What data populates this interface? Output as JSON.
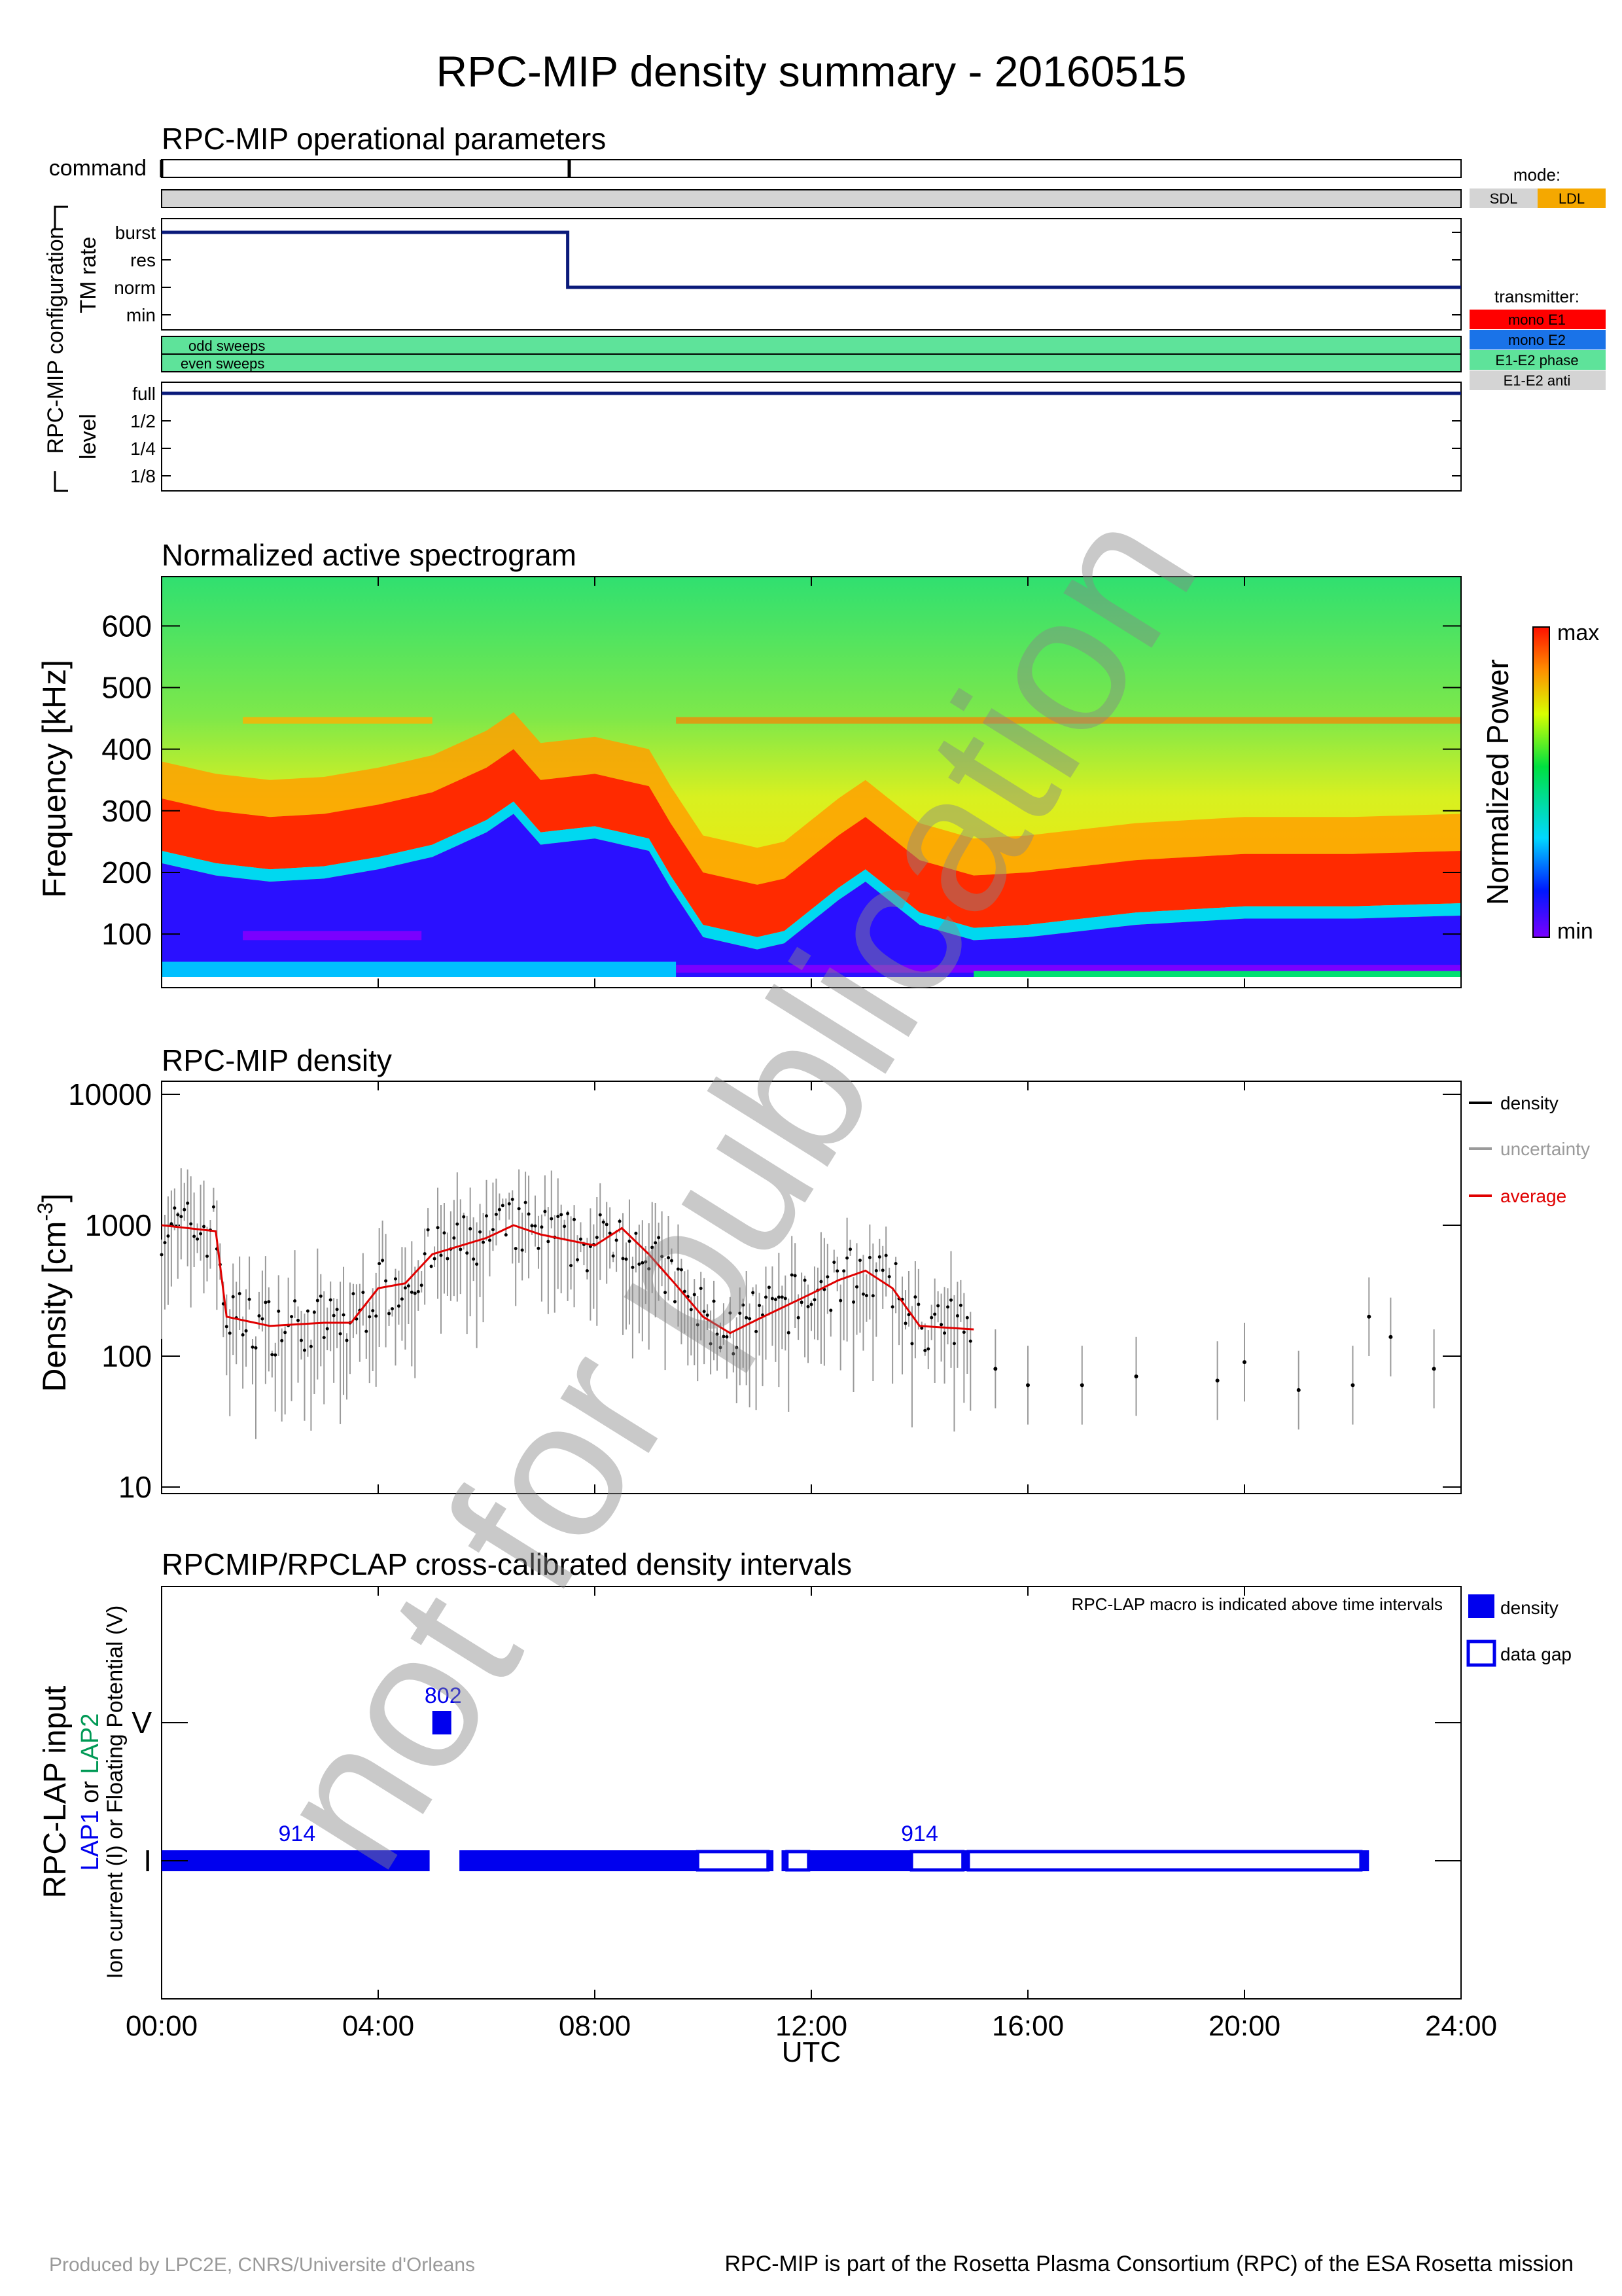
{
  "title": "RPC-MIP density summary - 20160515",
  "watermark": "not for publication",
  "footer": {
    "left": "Produced by LPC2E, CNRS/Universite d'Orleans",
    "right": "RPC-MIP is part of the Rosetta Plasma Consortium (RPC) of the ESA Rosetta mission"
  },
  "colors": {
    "navy": "#0a1a7a",
    "sdl": "#d4d4d4",
    "ldl": "#f5a800",
    "mono_e1": "#ff0000",
    "mono_e2": "#1a73e8",
    "e1e2_phase": "#5ee39a",
    "e1e2_anti": "#d4d4d4",
    "lap_blue": "#0000ee",
    "lap2_green": "#009955",
    "average_red": "#e00000",
    "uncertainty_grey": "#9a9a9a"
  },
  "time_axis": {
    "ticks": [
      "00:00",
      "04:00",
      "08:00",
      "12:00",
      "16:00",
      "20:00",
      "24:00"
    ],
    "label": "UTC"
  },
  "panel_params": {
    "title": "RPC-MIP operational parameters",
    "command_label": "command",
    "group_label": "RPC-MIP configuration",
    "tm_rate_label": "TM rate",
    "tm_levels": [
      "burst",
      "res",
      "norm",
      "min"
    ],
    "level_label": "level",
    "level_levels": [
      "full",
      "1/2",
      "1/4",
      "1/8"
    ],
    "sweep_labels": [
      "odd sweeps",
      "even sweeps"
    ],
    "mode_legend": {
      "title": "mode:",
      "items": [
        "SDL",
        "LDL"
      ]
    },
    "transmitter_legend": {
      "title": "transmitter:",
      "items": [
        "mono E1",
        "mono E2",
        "E1-E2 phase",
        "E1-E2 anti"
      ]
    }
  },
  "panel_spectrogram": {
    "title": "Normalized active spectrogram",
    "ylabel": "Frequency [kHz]",
    "yticks": [
      "100",
      "200",
      "300",
      "400",
      "500",
      "600"
    ],
    "colorbar_label": "Normalized Power",
    "colorbar_max": "max",
    "colorbar_min": "min"
  },
  "panel_density": {
    "title": "RPC-MIP density",
    "ylabel": "Density [cm",
    "ylabel_sup": "-3",
    "ylabel_end": "]",
    "yticks": [
      "10",
      "100",
      "1000",
      "10000"
    ],
    "legend": [
      "density",
      "uncertainty",
      "average"
    ]
  },
  "panel_lap": {
    "title": "RPCMIP/RPCLAP cross-calibrated density intervals",
    "note": "RPC-LAP macro is indicated above time intervals",
    "ylabel_main": "RPC-LAP input",
    "ylabel_lap1": "LAP1",
    "ylabel_or": " or ",
    "ylabel_lap2": "LAP2",
    "ylabel_sub": "Ion current (I) or Floating Potential (V)",
    "ytick_V": "V",
    "ytick_I": "I",
    "legend": [
      "density",
      "data gap"
    ]
  },
  "chart_data": [
    {
      "type": "step",
      "name": "TM rate",
      "x_unit": "hours UTC",
      "categories": [
        "min",
        "norm",
        "res",
        "burst"
      ],
      "points": [
        [
          0,
          "burst"
        ],
        [
          7.5,
          "burst"
        ],
        [
          7.5,
          "norm"
        ],
        [
          24,
          "norm"
        ]
      ]
    },
    {
      "type": "step",
      "name": "level",
      "categories": [
        "1/8",
        "1/4",
        "1/2",
        "full"
      ],
      "points": [
        [
          0,
          "full"
        ],
        [
          24,
          "full"
        ]
      ]
    },
    {
      "type": "heatmap",
      "title": "Normalized active spectrogram",
      "x_range": [
        0,
        24
      ],
      "ylim": [
        30,
        680
      ],
      "plasma_line_khz": [
        [
          0,
          260
        ],
        [
          1,
          240
        ],
        [
          2,
          230
        ],
        [
          3,
          235
        ],
        [
          4,
          250
        ],
        [
          5,
          270
        ],
        [
          6,
          310
        ],
        [
          6.5,
          340
        ],
        [
          7,
          290
        ],
        [
          8,
          300
        ],
        [
          9,
          280
        ],
        [
          9.4,
          220
        ],
        [
          10,
          140
        ],
        [
          11,
          120
        ],
        [
          11.5,
          130
        ],
        [
          12.5,
          200
        ],
        [
          13,
          230
        ],
        [
          14,
          160
        ],
        [
          15,
          135
        ],
        [
          16,
          140
        ],
        [
          18,
          160
        ],
        [
          20,
          170
        ],
        [
          22,
          170
        ],
        [
          24,
          175
        ]
      ]
    },
    {
      "type": "scatter",
      "title": "RPC-MIP density",
      "yscale": "log",
      "ylim": [
        10,
        10000
      ],
      "x_range": [
        0,
        24
      ],
      "average": [
        [
          0,
          1000
        ],
        [
          1,
          900
        ],
        [
          1.2,
          200
        ],
        [
          2,
          170
        ],
        [
          3,
          180
        ],
        [
          3.5,
          180
        ],
        [
          4,
          330
        ],
        [
          4.5,
          360
        ],
        [
          5,
          600
        ],
        [
          6,
          800
        ],
        [
          6.5,
          1000
        ],
        [
          7,
          850
        ],
        [
          8,
          700
        ],
        [
          8.5,
          950
        ],
        [
          9,
          600
        ],
        [
          9.5,
          350
        ],
        [
          10,
          200
        ],
        [
          10.5,
          150
        ],
        [
          11,
          190
        ],
        [
          12,
          300
        ],
        [
          12.5,
          380
        ],
        [
          13,
          450
        ],
        [
          13.5,
          330
        ],
        [
          14,
          170
        ],
        [
          15,
          160
        ]
      ],
      "sparse_points": [
        [
          15.4,
          80
        ],
        [
          16,
          60
        ],
        [
          17,
          60
        ],
        [
          18,
          70
        ],
        [
          19.5,
          65
        ],
        [
          20,
          90
        ],
        [
          21,
          55
        ],
        [
          22,
          60
        ],
        [
          22.3,
          200
        ],
        [
          22.7,
          140
        ],
        [
          23.5,
          80
        ]
      ]
    },
    {
      "type": "interval",
      "title": "RPCMIP/RPCLAP cross-calibrated density intervals",
      "rows": [
        "I",
        "V"
      ],
      "macro_labels": [
        {
          "row": "I",
          "x": 2.5,
          "text": "914"
        },
        {
          "row": "I",
          "x": 14,
          "text": "914"
        },
        {
          "row": "V",
          "x": 5.2,
          "text": "802"
        }
      ],
      "density_intervals": [
        {
          "row": "I",
          "start": 0.0,
          "end": 4.95
        },
        {
          "row": "I",
          "start": 5.5,
          "end": 9.9
        },
        {
          "row": "I",
          "start": 11.2,
          "end": 11.3
        },
        {
          "row": "I",
          "start": 11.45,
          "end": 11.55
        },
        {
          "row": "I",
          "start": 11.95,
          "end": 13.85
        },
        {
          "row": "I",
          "start": 14.8,
          "end": 14.9
        },
        {
          "row": "I",
          "start": 22.15,
          "end": 22.3
        },
        {
          "row": "V",
          "start": 5.0,
          "end": 5.35
        }
      ],
      "gap_intervals": [
        {
          "row": "I",
          "start": 9.9,
          "end": 11.2
        },
        {
          "row": "I",
          "start": 11.55,
          "end": 11.95
        },
        {
          "row": "I",
          "start": 13.85,
          "end": 14.8
        },
        {
          "row": "I",
          "start": 14.9,
          "end": 22.15
        }
      ]
    }
  ]
}
